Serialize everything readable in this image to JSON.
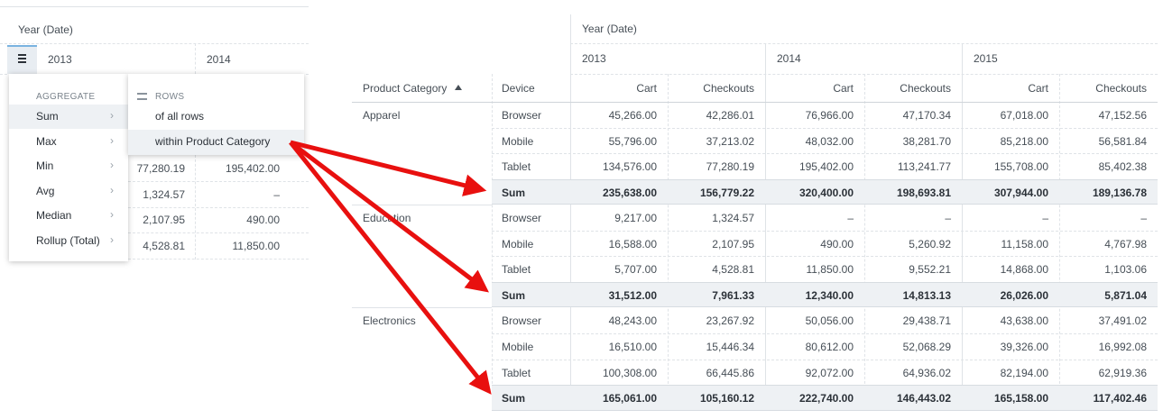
{
  "left_panel": {
    "header": "Year (Date)",
    "years": [
      "2013",
      "2014"
    ],
    "rows": [
      [
        "77,280.19",
        "195,402.00"
      ],
      [
        "1,324.57",
        "–"
      ],
      [
        "2,107.95",
        "490.00"
      ],
      [
        "4,528.81",
        "11,850.00"
      ]
    ]
  },
  "menu": {
    "title": "AGGREGATE",
    "items": [
      "Sum",
      "Max",
      "Min",
      "Avg",
      "Median",
      "Rollup (Total)"
    ],
    "submenu": {
      "title": "ROWS",
      "items": [
        "of all rows",
        "within Product Category"
      ]
    }
  },
  "table": {
    "header": "Year (Date)",
    "years": [
      "2013",
      "2014",
      "2015"
    ],
    "columns": [
      "Product Category",
      "Device"
    ],
    "measures": [
      "Cart",
      "Checkouts"
    ],
    "groups": [
      {
        "category": "Apparel",
        "rows": [
          {
            "device": "Browser",
            "values": [
              "45,266.00",
              "42,286.01",
              "76,966.00",
              "47,170.34",
              "67,018.00",
              "47,152.56"
            ]
          },
          {
            "device": "Mobile",
            "values": [
              "55,796.00",
              "37,213.02",
              "48,032.00",
              "38,281.70",
              "85,218.00",
              "56,581.84"
            ]
          },
          {
            "device": "Tablet",
            "values": [
              "134,576.00",
              "77,280.19",
              "195,402.00",
              "113,241.77",
              "155,708.00",
              "85,402.38"
            ]
          }
        ],
        "sum_label": "Sum",
        "sum": [
          "235,638.00",
          "156,779.22",
          "320,400.00",
          "198,693.81",
          "307,944.00",
          "189,136.78"
        ]
      },
      {
        "category": "Education",
        "rows": [
          {
            "device": "Browser",
            "values": [
              "9,217.00",
              "1,324.57",
              "–",
              "–",
              "–",
              "–"
            ]
          },
          {
            "device": "Mobile",
            "values": [
              "16,588.00",
              "2,107.95",
              "490.00",
              "5,260.92",
              "11,158.00",
              "4,767.98"
            ]
          },
          {
            "device": "Tablet",
            "values": [
              "5,707.00",
              "4,528.81",
              "11,850.00",
              "9,552.21",
              "14,868.00",
              "1,103.06"
            ]
          }
        ],
        "sum_label": "Sum",
        "sum": [
          "31,512.00",
          "7,961.33",
          "12,340.00",
          "14,813.13",
          "26,026.00",
          "5,871.04"
        ]
      },
      {
        "category": "Electronics",
        "rows": [
          {
            "device": "Browser",
            "values": [
              "48,243.00",
              "23,267.92",
              "50,056.00",
              "29,438.71",
              "43,638.00",
              "37,491.02"
            ]
          },
          {
            "device": "Mobile",
            "values": [
              "16,510.00",
              "15,446.34",
              "80,612.00",
              "52,068.29",
              "39,326.00",
              "16,992.08"
            ]
          },
          {
            "device": "Tablet",
            "values": [
              "100,308.00",
              "66,445.86",
              "92,072.00",
              "64,936.02",
              "82,194.00",
              "62,919.36"
            ]
          }
        ],
        "sum_label": "Sum",
        "sum": [
          "165,061.00",
          "105,160.12",
          "222,740.00",
          "146,443.02",
          "165,158.00",
          "117,402.46"
        ]
      }
    ]
  }
}
